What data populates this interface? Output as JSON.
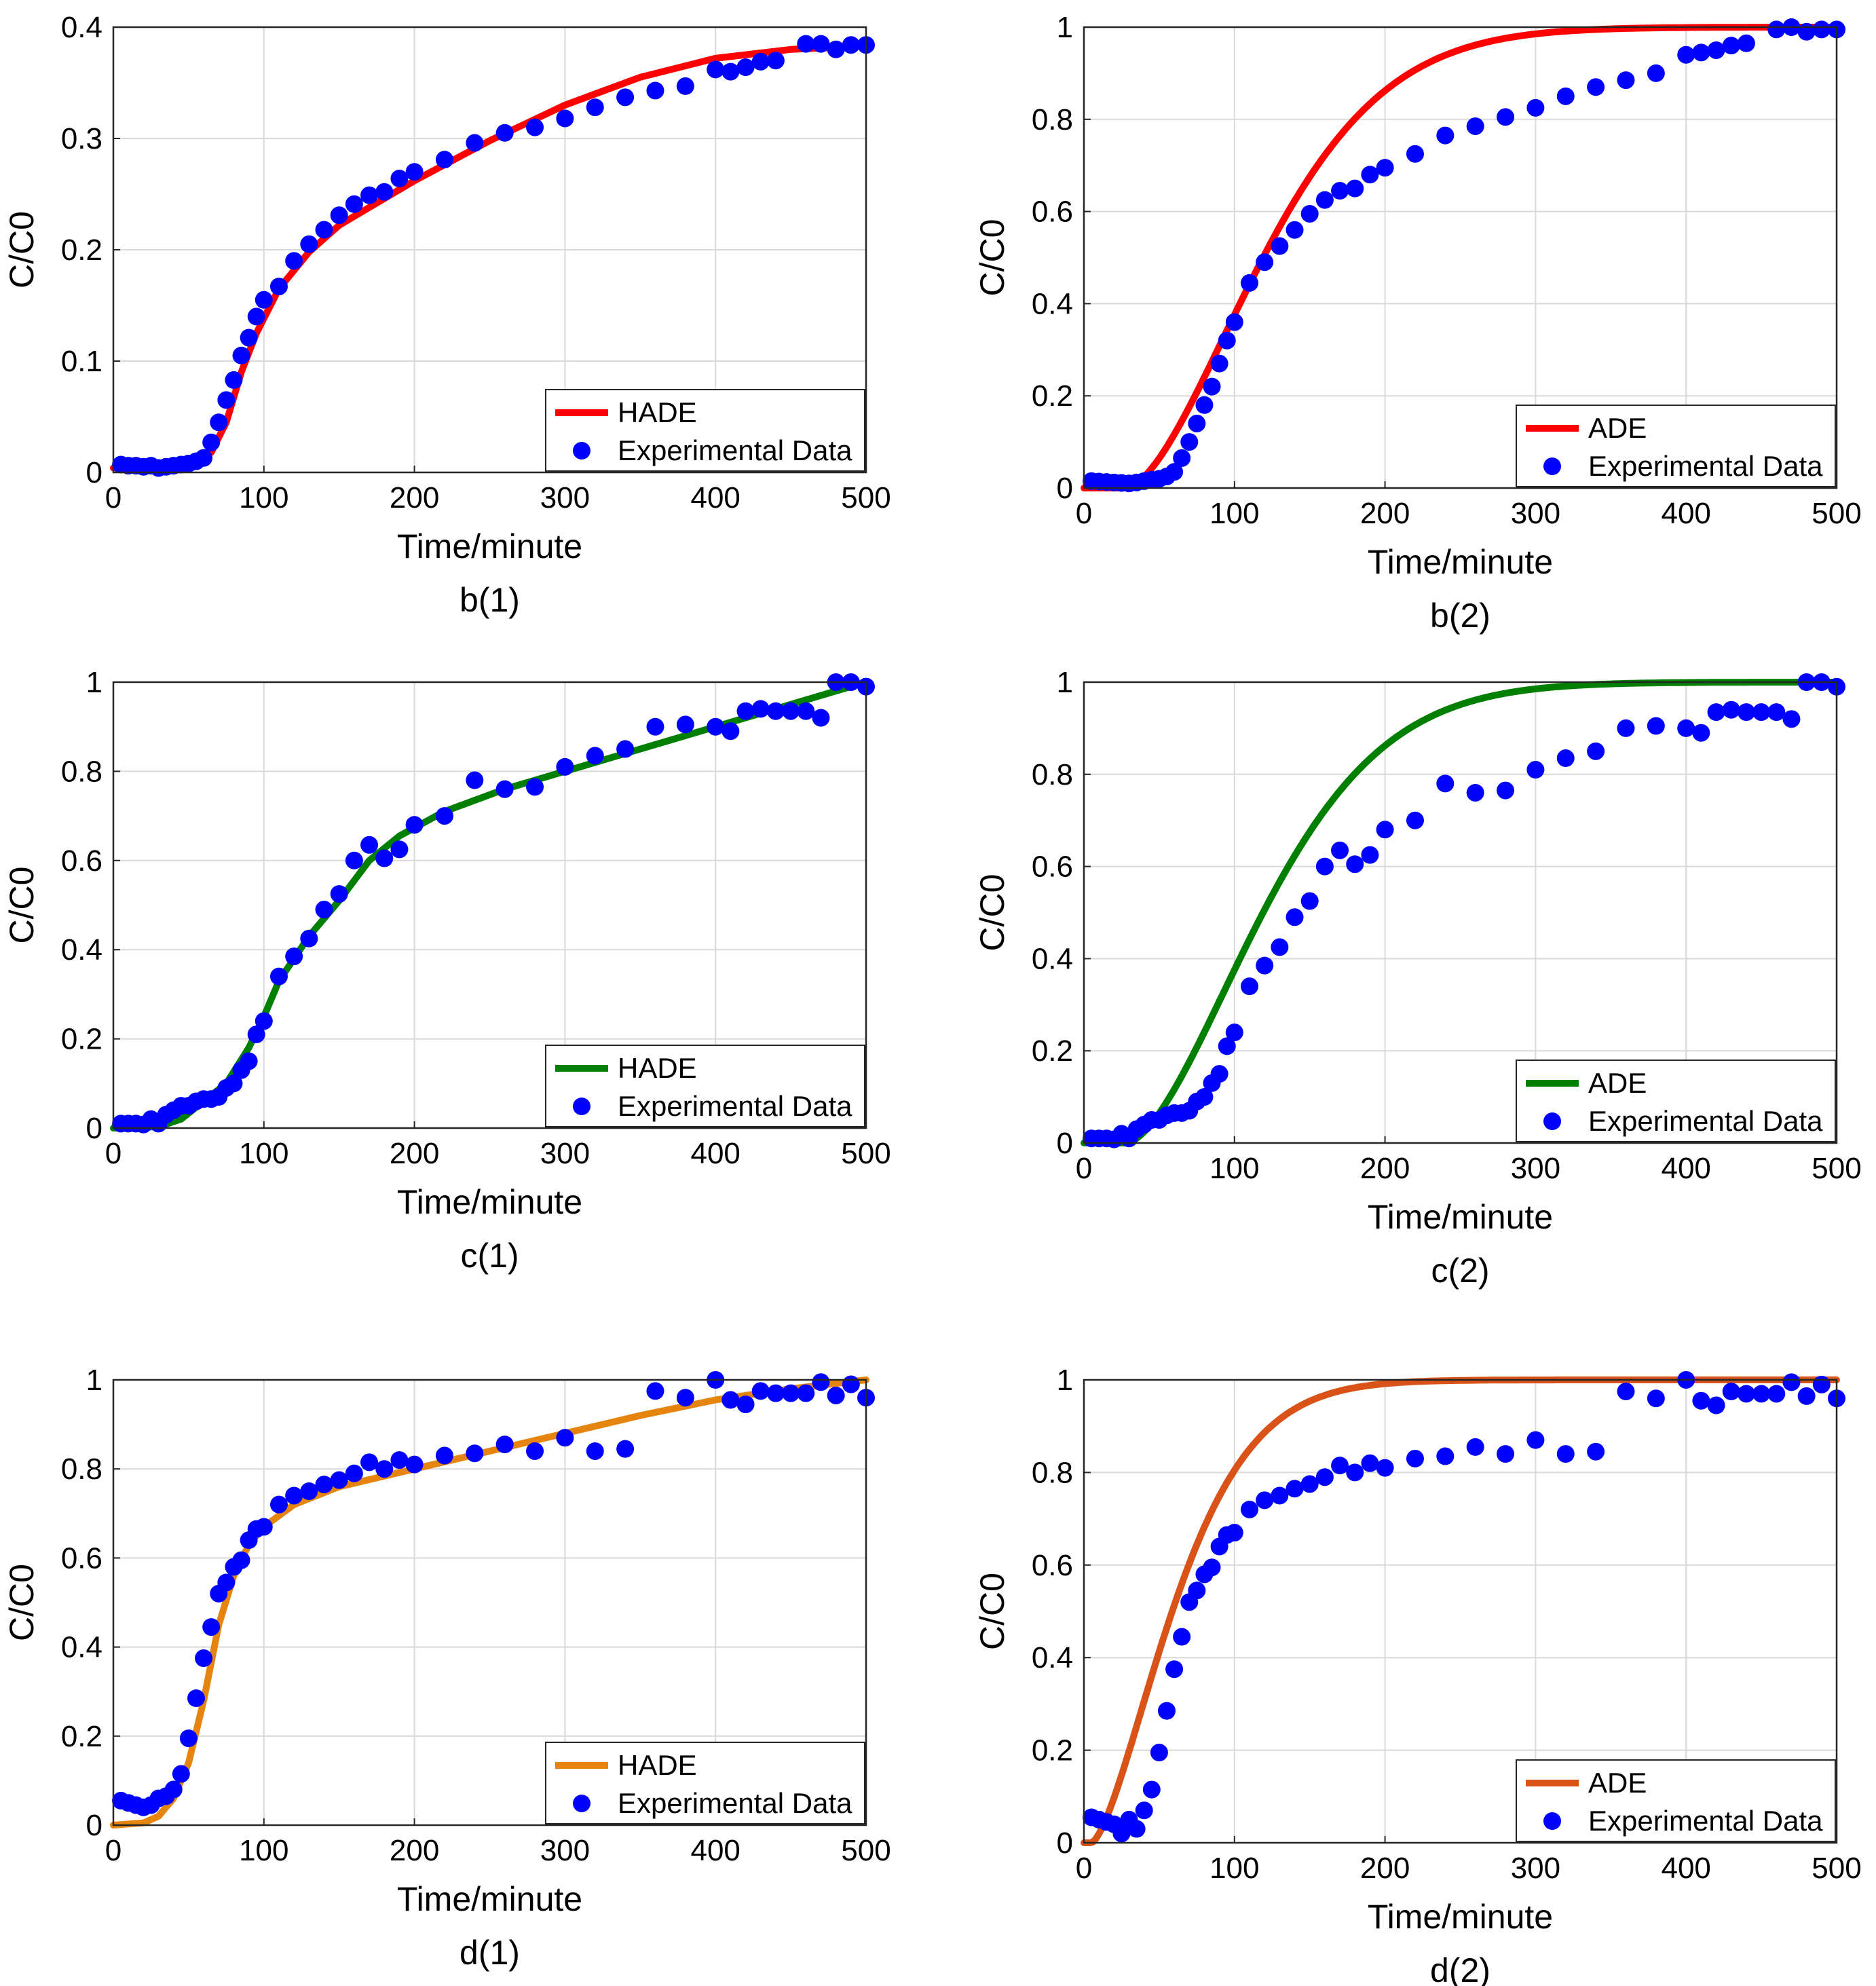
{
  "figure": {
    "colors": {
      "points": "#0000ff",
      "grid": "#d9d9d9",
      "axis": "#262626"
    }
  },
  "chart_data": [
    {
      "id": "b1",
      "type": "scatter+line",
      "caption": "b(1)",
      "xlabel": "Time/minute",
      "ylabel": "C/C0",
      "xlim": [
        0,
        500
      ],
      "ylim": [
        0,
        0.4
      ],
      "xticks": [
        0,
        100,
        200,
        300,
        400,
        500
      ],
      "xtick_labels": [
        "0",
        "100",
        "200",
        "300",
        "400",
        "500"
      ],
      "yticks": [
        0,
        0.1,
        0.2,
        0.3,
        0.4
      ],
      "ytick_labels": [
        "0",
        "0.1",
        "0.2",
        "0.3",
        "0.4"
      ],
      "grid": true,
      "legend_position": "bottom-right",
      "model": {
        "name": "HADE",
        "color": "#ff0000",
        "kind": "hade",
        "curve": [
          [
            0,
            0.004
          ],
          [
            50,
            0.008
          ],
          [
            65,
            0.018
          ],
          [
            75,
            0.045
          ],
          [
            85,
            0.09
          ],
          [
            95,
            0.125
          ],
          [
            110,
            0.165
          ],
          [
            130,
            0.198
          ],
          [
            150,
            0.222
          ],
          [
            200,
            0.262
          ],
          [
            250,
            0.298
          ],
          [
            300,
            0.33
          ],
          [
            350,
            0.355
          ],
          [
            400,
            0.372
          ],
          [
            450,
            0.38
          ],
          [
            500,
            0.383
          ]
        ]
      },
      "series": [
        {
          "name": "Experimental Data",
          "x": [
            5,
            10,
            15,
            20,
            25,
            30,
            35,
            40,
            45,
            50,
            55,
            60,
            65,
            70,
            75,
            80,
            85,
            90,
            95,
            100,
            110,
            120,
            130,
            140,
            150,
            160,
            170,
            180,
            190,
            200,
            220,
            240,
            260,
            280,
            300,
            320,
            340,
            360,
            380,
            400,
            410,
            420,
            430,
            440,
            460,
            470,
            480,
            490,
            500
          ],
          "y": [
            0.007,
            0.006,
            0.006,
            0.005,
            0.006,
            0.004,
            0.005,
            0.006,
            0.007,
            0.008,
            0.01,
            0.013,
            0.027,
            0.045,
            0.065,
            0.083,
            0.105,
            0.121,
            0.14,
            0.155,
            0.167,
            0.19,
            0.205,
            0.218,
            0.231,
            0.241,
            0.249,
            0.252,
            0.264,
            0.27,
            0.281,
            0.296,
            0.305,
            0.31,
            0.318,
            0.328,
            0.337,
            0.343,
            0.347,
            0.362,
            0.36,
            0.364,
            0.369,
            0.37,
            0.385,
            0.385,
            0.38,
            0.384,
            0.384
          ]
        }
      ]
    },
    {
      "id": "b2",
      "type": "scatter+line",
      "caption": "b(2)",
      "xlabel": "Time/minute",
      "ylabel": "C/C0",
      "xlim": [
        0,
        500
      ],
      "ylim": [
        0,
        1
      ],
      "xticks": [
        0,
        100,
        200,
        300,
        400,
        500
      ],
      "xtick_labels": [
        "0",
        "100",
        "200",
        "300",
        "400",
        "500"
      ],
      "yticks": [
        0,
        0.2,
        0.4,
        0.6,
        0.8,
        1
      ],
      "ytick_labels": [
        "0",
        "0.2",
        "0.4",
        "0.6",
        "0.8",
        "1"
      ],
      "grid": true,
      "legend_position": "bottom-right",
      "model": {
        "name": "ADE",
        "color": "#ff0000",
        "kind": "ade",
        "t0": 28,
        "k": 0.0088,
        "p": 1.65
      },
      "series": [
        {
          "name": "Experimental Data",
          "x": [
            5,
            10,
            15,
            20,
            25,
            30,
            35,
            40,
            45,
            50,
            55,
            60,
            65,
            70,
            75,
            80,
            85,
            90,
            95,
            100,
            110,
            120,
            130,
            140,
            150,
            160,
            170,
            180,
            190,
            200,
            220,
            240,
            260,
            280,
            300,
            320,
            340,
            360,
            380,
            400,
            410,
            420,
            430,
            440,
            460,
            470,
            480,
            490,
            500
          ],
          "y": [
            0.015,
            0.014,
            0.013,
            0.012,
            0.011,
            0.01,
            0.012,
            0.015,
            0.018,
            0.02,
            0.025,
            0.035,
            0.065,
            0.1,
            0.14,
            0.18,
            0.22,
            0.27,
            0.32,
            0.36,
            0.445,
            0.49,
            0.525,
            0.56,
            0.595,
            0.625,
            0.645,
            0.65,
            0.68,
            0.695,
            0.725,
            0.765,
            0.785,
            0.805,
            0.825,
            0.85,
            0.87,
            0.885,
            0.9,
            0.94,
            0.945,
            0.95,
            0.96,
            0.965,
            0.995,
            1.0,
            0.99,
            0.995,
            0.995
          ]
        }
      ]
    },
    {
      "id": "c1",
      "type": "scatter+line",
      "caption": "c(1)",
      "xlabel": "Time/minute",
      "ylabel": "C/C0",
      "xlim": [
        0,
        500
      ],
      "ylim": [
        0,
        1
      ],
      "xticks": [
        0,
        100,
        200,
        300,
        400,
        500
      ],
      "xtick_labels": [
        "0",
        "100",
        "200",
        "300",
        "400",
        "500"
      ],
      "yticks": [
        0,
        0.2,
        0.4,
        0.6,
        0.8,
        1
      ],
      "ytick_labels": [
        "0",
        "0.2",
        "0.4",
        "0.6",
        "0.8",
        "1"
      ],
      "grid": true,
      "legend_position": "bottom-right",
      "model": {
        "name": "HADE",
        "color": "#007f00",
        "kind": "hade",
        "curve": [
          [
            0,
            0
          ],
          [
            30,
            0.003
          ],
          [
            45,
            0.02
          ],
          [
            60,
            0.06
          ],
          [
            75,
            0.1
          ],
          [
            90,
            0.18
          ],
          [
            100,
            0.25
          ],
          [
            110,
            0.33
          ],
          [
            130,
            0.43
          ],
          [
            150,
            0.51
          ],
          [
            170,
            0.6
          ],
          [
            190,
            0.655
          ],
          [
            220,
            0.71
          ],
          [
            260,
            0.76
          ],
          [
            300,
            0.8
          ],
          [
            350,
            0.85
          ],
          [
            400,
            0.9
          ],
          [
            450,
            0.95
          ],
          [
            480,
            0.98
          ],
          [
            500,
            1.0
          ]
        ]
      },
      "series": [
        {
          "name": "Experimental Data",
          "x": [
            5,
            10,
            15,
            20,
            25,
            30,
            35,
            40,
            45,
            50,
            55,
            60,
            65,
            70,
            75,
            80,
            85,
            90,
            95,
            100,
            110,
            120,
            130,
            140,
            150,
            160,
            170,
            180,
            190,
            200,
            220,
            240,
            260,
            280,
            300,
            320,
            340,
            360,
            380,
            400,
            410,
            420,
            430,
            440,
            450,
            460,
            470,
            480,
            490,
            500
          ],
          "y": [
            0.01,
            0.01,
            0.01,
            0.008,
            0.02,
            0.01,
            0.03,
            0.04,
            0.05,
            0.05,
            0.06,
            0.065,
            0.065,
            0.07,
            0.09,
            0.1,
            0.13,
            0.15,
            0.21,
            0.24,
            0.34,
            0.385,
            0.425,
            0.49,
            0.525,
            0.6,
            0.635,
            0.605,
            0.625,
            0.68,
            0.7,
            0.78,
            0.76,
            0.765,
            0.81,
            0.835,
            0.85,
            0.9,
            0.905,
            0.9,
            0.89,
            0.935,
            0.94,
            0.935,
            0.935,
            0.935,
            0.92,
            1.0,
            1.0,
            0.99
          ]
        }
      ]
    },
    {
      "id": "c2",
      "type": "scatter+line",
      "caption": "c(2)",
      "xlabel": "Time/minute",
      "ylabel": "C/C0",
      "xlim": [
        0,
        500
      ],
      "ylim": [
        0,
        1
      ],
      "xticks": [
        0,
        100,
        200,
        300,
        400,
        500
      ],
      "xtick_labels": [
        "0",
        "100",
        "200",
        "300",
        "400",
        "500"
      ],
      "yticks": [
        0,
        0.2,
        0.4,
        0.6,
        0.8,
        1
      ],
      "ytick_labels": [
        "0",
        "0.2",
        "0.4",
        "0.6",
        "0.8",
        "1"
      ],
      "grid": true,
      "legend_position": "bottom-right",
      "model": {
        "name": "ADE",
        "color": "#007f00",
        "kind": "ade",
        "t0": 28,
        "k": 0.0088,
        "p": 1.65
      },
      "series": [
        {
          "name": "Experimental Data",
          "x": [
            5,
            10,
            15,
            20,
            25,
            30,
            35,
            40,
            45,
            50,
            55,
            60,
            65,
            70,
            75,
            80,
            85,
            90,
            95,
            100,
            110,
            120,
            130,
            140,
            150,
            160,
            170,
            180,
            190,
            200,
            220,
            240,
            260,
            280,
            300,
            320,
            340,
            360,
            380,
            400,
            410,
            420,
            430,
            440,
            450,
            460,
            470,
            480,
            490,
            500
          ],
          "y": [
            0.01,
            0.01,
            0.01,
            0.008,
            0.02,
            0.01,
            0.03,
            0.04,
            0.05,
            0.05,
            0.06,
            0.065,
            0.065,
            0.07,
            0.09,
            0.1,
            0.13,
            0.15,
            0.21,
            0.24,
            0.34,
            0.385,
            0.425,
            0.49,
            0.525,
            0.6,
            0.635,
            0.605,
            0.625,
            0.68,
            0.7,
            0.78,
            0.76,
            0.765,
            0.81,
            0.835,
            0.85,
            0.9,
            0.905,
            0.9,
            0.89,
            0.935,
            0.94,
            0.935,
            0.935,
            0.935,
            0.92,
            1.0,
            1.0,
            0.99
          ]
        }
      ]
    },
    {
      "id": "d1",
      "type": "scatter+line",
      "caption": "d(1)",
      "xlabel": "Time/minute",
      "ylabel": "C/C0",
      "xlim": [
        0,
        500
      ],
      "ylim": [
        0,
        1
      ],
      "xticks": [
        0,
        100,
        200,
        300,
        400,
        500
      ],
      "xtick_labels": [
        "0",
        "100",
        "200",
        "300",
        "400",
        "500"
      ],
      "yticks": [
        0,
        0.2,
        0.4,
        0.6,
        0.8,
        1
      ],
      "ytick_labels": [
        "0",
        "0.2",
        "0.4",
        "0.6",
        "0.8",
        "1"
      ],
      "grid": true,
      "legend_position": "bottom-right",
      "model": {
        "name": "HADE",
        "color": "#e5850f",
        "kind": "hade",
        "curve": [
          [
            0,
            0
          ],
          [
            20,
            0.005
          ],
          [
            30,
            0.02
          ],
          [
            40,
            0.06
          ],
          [
            50,
            0.14
          ],
          [
            60,
            0.28
          ],
          [
            70,
            0.45
          ],
          [
            80,
            0.56
          ],
          [
            90,
            0.63
          ],
          [
            100,
            0.67
          ],
          [
            120,
            0.72
          ],
          [
            150,
            0.76
          ],
          [
            200,
            0.8
          ],
          [
            250,
            0.84
          ],
          [
            300,
            0.88
          ],
          [
            350,
            0.92
          ],
          [
            400,
            0.955
          ],
          [
            450,
            0.98
          ],
          [
            500,
            1.0
          ]
        ]
      },
      "series": [
        {
          "name": "Experimental Data",
          "x": [
            5,
            10,
            15,
            20,
            25,
            30,
            35,
            40,
            45,
            50,
            55,
            60,
            65,
            70,
            75,
            80,
            85,
            90,
            95,
            100,
            110,
            120,
            130,
            140,
            150,
            160,
            170,
            180,
            190,
            200,
            220,
            240,
            260,
            280,
            300,
            320,
            340,
            360,
            380,
            400,
            410,
            420,
            430,
            440,
            450,
            460,
            470,
            480,
            490,
            500
          ],
          "y": [
            0.055,
            0.05,
            0.045,
            0.04,
            0.045,
            0.06,
            0.065,
            0.08,
            0.115,
            0.195,
            0.285,
            0.375,
            0.445,
            0.52,
            0.545,
            0.58,
            0.595,
            0.64,
            0.665,
            0.67,
            0.72,
            0.74,
            0.75,
            0.765,
            0.775,
            0.79,
            0.815,
            0.8,
            0.82,
            0.81,
            0.83,
            0.835,
            0.855,
            0.84,
            0.87,
            0.84,
            0.845,
            0.975,
            0.96,
            1.0,
            0.955,
            0.945,
            0.975,
            0.97,
            0.97,
            0.97,
            0.995,
            0.965,
            0.99,
            0.96
          ]
        }
      ]
    },
    {
      "id": "d2",
      "type": "scatter+line",
      "caption": "d(2)",
      "xlabel": "Time/minute",
      "ylabel": "C/C0",
      "xlim": [
        0,
        500
      ],
      "ylim": [
        0,
        1
      ],
      "xticks": [
        0,
        100,
        200,
        300,
        400,
        500
      ],
      "xtick_labels": [
        "0",
        "100",
        "200",
        "300",
        "400",
        "500"
      ],
      "yticks": [
        0,
        0.2,
        0.4,
        0.6,
        0.8,
        1
      ],
      "ytick_labels": [
        "0",
        "0.2",
        "0.4",
        "0.6",
        "0.8",
        "1"
      ],
      "grid": true,
      "legend_position": "bottom-right",
      "model": {
        "name": "ADE",
        "color": "#d95319",
        "kind": "ade",
        "t0": 5,
        "k": 0.0146,
        "p": 1.5
      },
      "series": [
        {
          "name": "Experimental Data",
          "x": [
            5,
            10,
            15,
            20,
            25,
            30,
            35,
            40,
            45,
            50,
            55,
            60,
            65,
            70,
            75,
            80,
            85,
            90,
            95,
            100,
            110,
            120,
            130,
            140,
            150,
            160,
            170,
            180,
            190,
            200,
            220,
            240,
            260,
            280,
            300,
            320,
            340,
            360,
            380,
            400,
            410,
            420,
            430,
            440,
            450,
            460,
            470,
            480,
            490,
            500
          ],
          "y": [
            0.055,
            0.05,
            0.045,
            0.04,
            0.02,
            0.05,
            0.03,
            0.07,
            0.115,
            0.195,
            0.285,
            0.375,
            0.445,
            0.52,
            0.545,
            0.58,
            0.595,
            0.64,
            0.665,
            0.67,
            0.72,
            0.74,
            0.75,
            0.765,
            0.775,
            0.79,
            0.815,
            0.8,
            0.82,
            0.81,
            0.83,
            0.835,
            0.855,
            0.84,
            0.87,
            0.84,
            0.845,
            0.975,
            0.96,
            1.0,
            0.955,
            0.945,
            0.975,
            0.97,
            0.97,
            0.97,
            0.995,
            0.965,
            0.99,
            0.96
          ]
        }
      ]
    }
  ]
}
